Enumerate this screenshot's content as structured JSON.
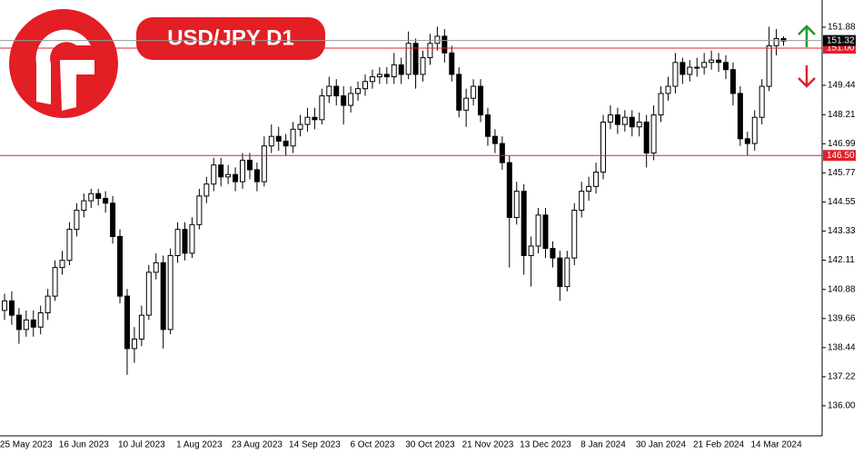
{
  "chart_data": {
    "type": "candlestick",
    "title": "USD/JPY D1",
    "categories": [
      null,
      null,
      null,
      "25 May 2023",
      null,
      null,
      null,
      null,
      null,
      null,
      null,
      "16 Jun 2023",
      null,
      null,
      null,
      null,
      null,
      null,
      null,
      "10 Jul 2023",
      null,
      null,
      null,
      null,
      null,
      null,
      null,
      "1 Aug 2023",
      null,
      null,
      null,
      null,
      null,
      null,
      null,
      "23 Aug 2023",
      null,
      null,
      null,
      null,
      null,
      null,
      null,
      "14 Sep 2023",
      null,
      null,
      null,
      null,
      null,
      null,
      null,
      "6 Oct 2023",
      null,
      null,
      null,
      null,
      null,
      null,
      null,
      "30 Oct 2023",
      null,
      null,
      null,
      null,
      null,
      null,
      null,
      "21 Nov 2023",
      null,
      null,
      null,
      null,
      null,
      null,
      null,
      "13 Dec 2023",
      null,
      null,
      null,
      null,
      null,
      null,
      null,
      "8 Jan 2024",
      null,
      null,
      null,
      null,
      null,
      null,
      null,
      "30 Jan 2024",
      null,
      null,
      null,
      null,
      null,
      null,
      null,
      "21 Feb 2024",
      null,
      null,
      null,
      null,
      null,
      null,
      null,
      "14 Mar 2024",
      null
    ],
    "open": [
      140.0,
      140.4,
      139.8,
      139.2,
      139.6,
      139.3,
      139.9,
      140.6,
      141.8,
      142.1,
      143.4,
      144.2,
      144.6,
      144.9,
      144.7,
      144.5,
      143.1,
      140.6,
      138.4,
      138.8,
      139.8,
      141.6,
      142.0,
      139.2,
      142.3,
      143.4,
      142.4,
      143.6,
      144.8,
      145.3,
      146.1,
      145.6,
      145.7,
      145.4,
      146.3,
      145.9,
      145.4,
      146.9,
      147.3,
      147.1,
      146.9,
      147.6,
      147.8,
      148.1,
      148.0,
      149.0,
      149.4,
      149.0,
      148.6,
      149.1,
      149.3,
      149.6,
      149.8,
      149.9,
      149.8,
      150.3,
      149.9,
      151.2,
      149.9,
      150.6,
      151.2,
      151.5,
      150.8,
      149.9,
      148.4,
      148.9,
      149.4,
      148.2,
      147.3,
      147.0,
      146.2,
      143.9,
      145.0,
      142.3,
      142.7,
      144.0,
      142.6,
      142.2,
      141.0,
      142.2,
      144.2,
      145.0,
      145.2,
      145.8,
      147.9,
      148.2,
      147.8,
      148.1,
      147.7,
      147.9,
      146.6,
      148.2,
      149.1,
      149.4,
      150.4,
      149.9,
      150.2,
      150.2,
      150.4,
      150.5,
      150.4,
      150.1,
      149.1,
      147.2,
      147.0,
      148.1,
      149.4,
      151.1,
      151.4
    ],
    "high": [
      140.7,
      140.8,
      140.1,
      140.0,
      140.0,
      140.2,
      140.9,
      142.1,
      142.5,
      143.7,
      144.5,
      144.9,
      145.1,
      145.1,
      145.0,
      144.8,
      143.4,
      140.9,
      139.3,
      140.2,
      141.9,
      142.4,
      142.3,
      142.6,
      143.7,
      143.7,
      143.9,
      145.1,
      145.6,
      146.4,
      146.4,
      146.1,
      146.0,
      146.6,
      146.6,
      146.2,
      147.3,
      147.8,
      147.7,
      147.4,
      147.9,
      148.2,
      148.5,
      148.5,
      149.3,
      149.8,
      149.7,
      149.4,
      149.4,
      149.6,
      149.9,
      150.1,
      150.2,
      150.2,
      150.8,
      150.6,
      151.7,
      151.4,
      150.9,
      151.6,
      151.9,
      151.8,
      151.1,
      150.2,
      149.3,
      149.7,
      149.7,
      148.5,
      147.6,
      147.3,
      146.5,
      145.4,
      145.3,
      143.1,
      144.3,
      144.3,
      142.9,
      142.5,
      142.5,
      144.5,
      145.4,
      145.6,
      146.2,
      148.2,
      148.6,
      148.5,
      148.4,
      148.4,
      148.3,
      148.2,
      148.6,
      149.4,
      149.8,
      150.8,
      150.6,
      150.5,
      150.6,
      150.8,
      150.9,
      150.8,
      150.7,
      150.4,
      149.4,
      147.5,
      148.4,
      149.7,
      151.9,
      151.8,
      151.5
    ],
    "low": [
      139.6,
      139.4,
      138.6,
      138.9,
      138.9,
      139.0,
      139.6,
      140.4,
      141.5,
      141.9,
      143.1,
      143.9,
      144.3,
      144.4,
      144.1,
      142.8,
      140.3,
      137.3,
      137.8,
      138.5,
      139.6,
      141.3,
      138.4,
      139.0,
      142.0,
      142.1,
      142.2,
      143.4,
      144.5,
      145.0,
      145.2,
      145.3,
      145.0,
      145.1,
      145.5,
      145.0,
      145.2,
      146.6,
      146.7,
      146.5,
      146.6,
      147.3,
      147.5,
      147.6,
      147.8,
      148.7,
      148.6,
      147.8,
      148.3,
      148.8,
      149.0,
      149.3,
      149.5,
      149.5,
      149.5,
      149.5,
      149.7,
      149.3,
      149.6,
      150.3,
      150.9,
      150.4,
      149.6,
      148.1,
      147.7,
      148.6,
      147.9,
      146.9,
      146.6,
      145.9,
      141.8,
      143.6,
      141.5,
      141.0,
      142.4,
      142.2,
      141.8,
      140.4,
      140.8,
      141.9,
      143.9,
      144.6,
      144.9,
      145.5,
      147.6,
      147.4,
      147.5,
      147.3,
      147.3,
      146.0,
      146.3,
      147.9,
      148.8,
      149.1,
      149.5,
      149.6,
      149.8,
      149.9,
      150.1,
      150.0,
      149.7,
      148.6,
      146.9,
      146.5,
      146.7,
      147.8,
      149.2,
      150.7,
      151.1
    ],
    "close": [
      140.4,
      139.8,
      139.2,
      139.6,
      139.3,
      139.9,
      140.6,
      141.8,
      142.1,
      143.4,
      144.2,
      144.6,
      144.9,
      144.7,
      144.5,
      143.1,
      140.6,
      138.4,
      138.8,
      139.8,
      141.6,
      142.0,
      139.2,
      142.3,
      143.4,
      142.4,
      143.6,
      144.8,
      145.3,
      146.1,
      145.6,
      145.7,
      145.4,
      146.3,
      145.9,
      145.4,
      146.9,
      147.3,
      147.1,
      146.9,
      147.6,
      147.8,
      148.1,
      148.0,
      149.0,
      149.4,
      149.0,
      148.6,
      149.1,
      149.3,
      149.6,
      149.8,
      149.9,
      149.8,
      150.3,
      149.9,
      151.2,
      149.9,
      150.6,
      151.2,
      151.5,
      150.8,
      149.9,
      148.4,
      148.9,
      149.4,
      148.2,
      147.3,
      147.0,
      146.2,
      143.9,
      145.0,
      142.3,
      142.7,
      144.0,
      142.6,
      142.2,
      141.0,
      142.2,
      144.2,
      145.0,
      145.2,
      145.8,
      147.9,
      148.2,
      147.8,
      148.1,
      147.7,
      147.9,
      146.6,
      148.2,
      149.1,
      149.4,
      150.4,
      149.9,
      150.2,
      150.2,
      150.4,
      150.5,
      150.4,
      150.1,
      149.1,
      147.2,
      147.0,
      148.1,
      149.4,
      151.1,
      151.4,
      151.3
    ],
    "up_color": "#ffffff",
    "down_color": "#000000",
    "wick_color": "#000000",
    "ylim": [
      134.74,
      153.02
    ],
    "yticks": [
      151.88,
      149.44,
      148.21,
      146.99,
      145.77,
      144.55,
      143.33,
      142.11,
      140.88,
      139.66,
      138.44,
      137.22,
      {
        "value": 136,
        "label": "136.00"
      }
    ],
    "levels": [
      {
        "value": 151,
        "label": "151.00"
      },
      {
        "value": 146.5,
        "label": "146.50"
      }
    ],
    "level_color": "#e0202a",
    "last_price": 151.32
  }
}
